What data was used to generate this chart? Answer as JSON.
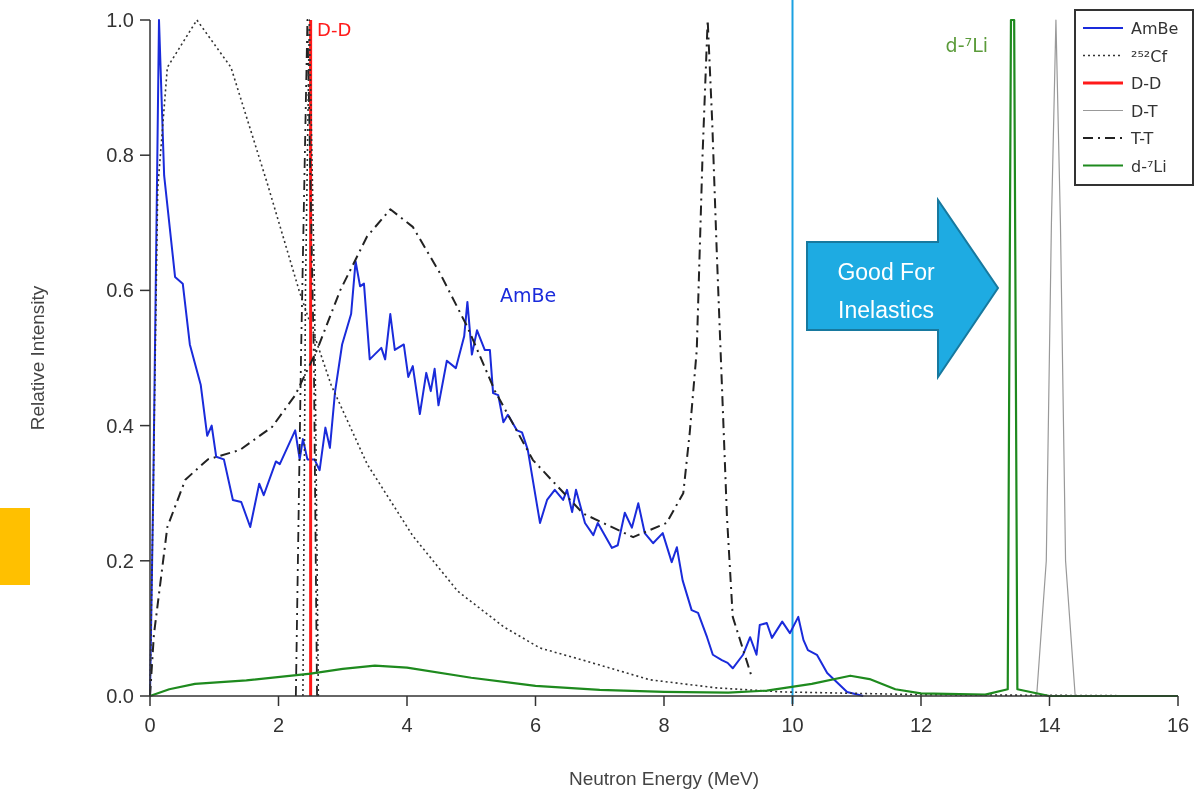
{
  "chart_data": {
    "type": "line",
    "xlabel": "Neutron Energy (MeV)",
    "ylabel": "Relative Intensity",
    "xlim": [
      0,
      16
    ],
    "xticks": [
      0,
      2,
      4,
      6,
      8,
      10,
      12,
      14,
      16
    ],
    "ylim": [
      0,
      1
    ],
    "yticks": [
      {
        "value": 0,
        "label": "0.0"
      },
      0.2,
      0.4,
      0.6,
      0.8,
      {
        "value": 1,
        "label": "1.0"
      }
    ],
    "grid": false,
    "legend": "top right",
    "marker": "none",
    "series": [
      {
        "name": "AmBe",
        "color": "#1a2bdb",
        "line_style": "solid",
        "x": [
          0,
          0.05,
          0.14,
          0.22,
          0.39,
          0.51,
          0.62,
          0.79,
          0.89,
          0.96,
          1.03,
          1.15,
          1.29,
          1.42,
          1.56,
          1.7,
          1.77,
          1.96,
          2.02,
          2.26,
          2.33,
          2.38,
          2.45,
          2.56,
          2.64,
          2.73,
          2.8,
          2.88,
          2.99,
          3.13,
          3.2,
          3.27,
          3.33,
          3.42,
          3.6,
          3.66,
          3.74,
          3.81,
          3.95,
          4.02,
          4.09,
          4.2,
          4.3,
          4.37,
          4.43,
          4.49,
          4.62,
          4.76,
          4.89,
          4.94,
          5.01,
          5.09,
          5.21,
          5.29,
          5.34,
          5.42,
          5.5,
          5.57,
          5.71,
          5.79,
          5.88,
          6.07,
          6.18,
          6.3,
          6.43,
          6.49,
          6.57,
          6.63,
          6.77,
          6.9,
          6.97,
          7.19,
          7.28,
          7.39,
          7.5,
          7.6,
          7.7,
          7.83,
          7.98,
          8.12,
          8.2,
          8.29,
          8.43,
          8.53,
          8.67,
          8.76,
          8.9,
          8.99,
          9.07,
          9.23,
          9.34,
          9.44,
          9.49,
          9.6,
          9.68,
          9.84,
          9.96,
          10.09,
          10.17,
          10.24,
          10.38,
          10.54,
          10.85,
          11.1
        ],
        "values": [
          0,
          0.3,
          1.0,
          0.77,
          0.62,
          0.61,
          0.52,
          0.46,
          0.385,
          0.4,
          0.354,
          0.35,
          0.29,
          0.287,
          0.25,
          0.314,
          0.297,
          0.347,
          0.343,
          0.393,
          0.35,
          0.38,
          0.35,
          0.35,
          0.334,
          0.397,
          0.367,
          0.45,
          0.52,
          0.565,
          0.643,
          0.606,
          0.61,
          0.498,
          0.515,
          0.498,
          0.565,
          0.512,
          0.52,
          0.472,
          0.488,
          0.417,
          0.478,
          0.451,
          0.484,
          0.43,
          0.496,
          0.485,
          0.532,
          0.583,
          0.505,
          0.541,
          0.512,
          0.512,
          0.448,
          0.445,
          0.405,
          0.416,
          0.393,
          0.39,
          0.364,
          0.256,
          0.29,
          0.305,
          0.29,
          0.305,
          0.272,
          0.305,
          0.256,
          0.238,
          0.256,
          0.219,
          0.223,
          0.271,
          0.249,
          0.285,
          0.241,
          0.226,
          0.241,
          0.198,
          0.22,
          0.171,
          0.127,
          0.123,
          0.087,
          0.061,
          0.053,
          0.049,
          0.041,
          0.061,
          0.087,
          0.061,
          0.105,
          0.108,
          0.086,
          0.11,
          0.093,
          0.117,
          0.083,
          0.068,
          0.061,
          0.034,
          0.006,
          0
        ]
      },
      {
        "name": "²⁵²Cf",
        "color": "#333333",
        "line_style": "dotted",
        "x": [
          0,
          0.05,
          0.12,
          0.27,
          0.73,
          1.26,
          1.82,
          2.32,
          2.82,
          3.38,
          4.09,
          4.79,
          5.51,
          6.07,
          6.74,
          7.78,
          8.82,
          9.85,
          12,
          16
        ],
        "values": [
          0,
          0.3,
          0.75,
          0.93,
          1.0,
          0.93,
          0.76,
          0.6,
          0.46,
          0.343,
          0.237,
          0.155,
          0.102,
          0.071,
          0.053,
          0.024,
          0.012,
          0.006,
          0.002,
          0
        ]
      },
      {
        "name": "D-D",
        "color": "#ff1a1a",
        "line_style": "solid",
        "x": [
          2.5,
          2.5
        ],
        "values": [
          0,
          1.0
        ]
      },
      {
        "name": "D-T",
        "color": "#999999",
        "line_style": "solid",
        "x": [
          13.8,
          13.95,
          14.03,
          14.1,
          14.17,
          14.25,
          14.4
        ],
        "values": [
          0,
          0.2,
          0.7,
          1.0,
          0.7,
          0.2,
          0
        ]
      },
      {
        "name": "T-T",
        "color": "#222222",
        "line_style": "dashed",
        "x": [
          0,
          0.06,
          0.27,
          0.55,
          0.9,
          1.4,
          1.9,
          2.26,
          2.6,
          2.96,
          3.38,
          3.74,
          4.09,
          4.51,
          4.94,
          5.37,
          5.96,
          6.74,
          7.52,
          8.04,
          8.3,
          8.4,
          8.51,
          8.6,
          8.68,
          8.75,
          8.82,
          8.9,
          8.98,
          9.07,
          9.37
        ],
        "values": [
          0,
          0.09,
          0.25,
          0.32,
          0.35,
          0.364,
          0.398,
          0.445,
          0.512,
          0.6,
          0.68,
          0.72,
          0.694,
          0.626,
          0.546,
          0.451,
          0.349,
          0.27,
          0.235,
          0.256,
          0.3,
          0.389,
          0.512,
          0.8,
          1.0,
          0.85,
          0.66,
          0.463,
          0.265,
          0.117,
          0.027
        ]
      },
      {
        "color": "#222222",
        "line_style": "dashed",
        "x": [
          2.27,
          2.35,
          2.45,
          2.55,
          2.6
        ],
        "values": [
          0,
          0.5,
          1.0,
          0.5,
          0
        ]
      },
      {
        "color": "#333333",
        "line_style": "dotted",
        "x": [
          2.38,
          2.42,
          2.48,
          2.56,
          2.62
        ],
        "values": [
          0,
          0.6,
          1.0,
          0.6,
          0
        ]
      },
      {
        "name": "d-⁷Li",
        "color": "#1e8a1e",
        "line_style": "solid",
        "x": [
          0,
          0.3,
          0.7,
          1.5,
          2.5,
          3,
          3.5,
          4,
          5,
          6,
          7,
          8,
          9,
          9.6,
          10.3,
          10.9,
          11.2,
          11.6,
          12,
          13,
          13.35,
          13.4,
          13.45,
          13.5,
          14,
          16
        ],
        "values": [
          0,
          0.01,
          0.018,
          0.023,
          0.033,
          0.04,
          0.045,
          0.042,
          0.027,
          0.015,
          0.009,
          0.006,
          0.005,
          0.008,
          0.018,
          0.03,
          0.025,
          0.01,
          0.004,
          0.002,
          0.01,
          1.0,
          1.0,
          0.01,
          0,
          0
        ]
      }
    ],
    "ref_lines": [
      {
        "axis": "x",
        "value": 10,
        "color": "#1ba1e2"
      }
    ],
    "annotations": [
      {
        "text": "D-D",
        "x": 2.6,
        "y": 1.0
      },
      "AmBe",
      "d-⁷Li",
      "Good For Inelastics"
    ]
  }
}
